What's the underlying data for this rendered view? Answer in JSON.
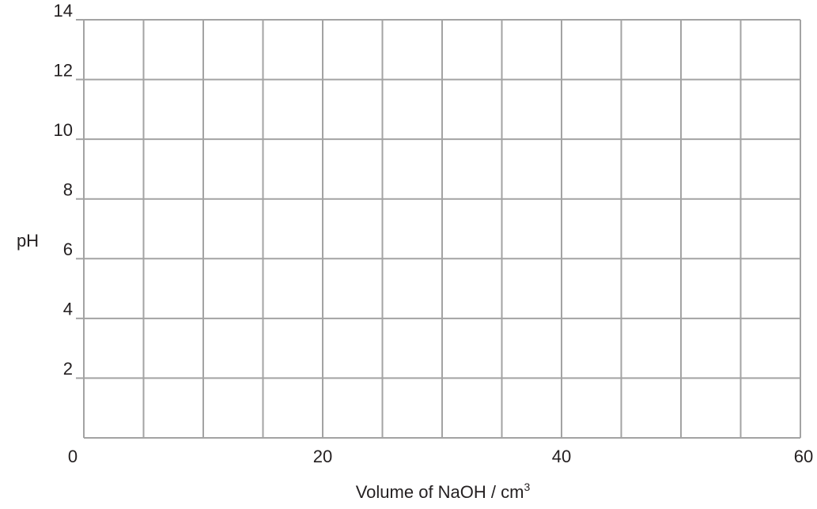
{
  "chart_data": {
    "type": "line",
    "title": "",
    "xlabel": "Volume of NaOH / cm",
    "xlabel_superscript": "3",
    "ylabel": "pH",
    "xlim": [
      0,
      60
    ],
    "ylim": [
      0,
      14
    ],
    "x_ticks": [
      0,
      20,
      40,
      60
    ],
    "y_ticks": [
      2,
      4,
      6,
      8,
      10,
      12,
      14
    ],
    "x_grid_step": 5,
    "y_grid_step": 2,
    "grid": true,
    "series": [],
    "colors": {
      "grid": "#a3a3a3",
      "text": "#231f20",
      "background": "#ffffff"
    }
  }
}
